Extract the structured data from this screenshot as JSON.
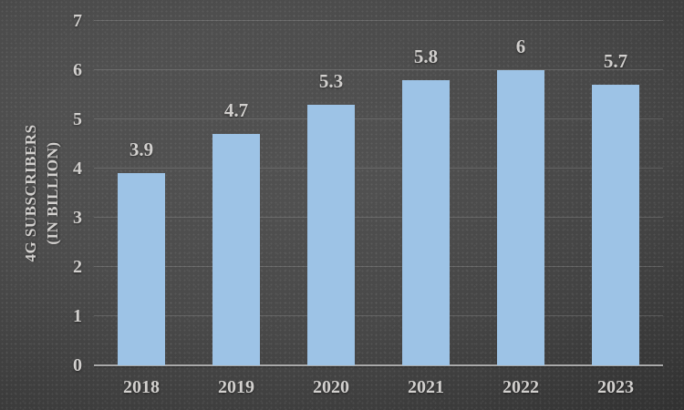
{
  "chart_data": {
    "type": "bar",
    "title": "",
    "ylabel_line1": "4G SUBSCRIBERS",
    "ylabel_line2": "(IN BILLION)",
    "xlabel": "",
    "categories": [
      "2018",
      "2019",
      "2020",
      "2021",
      "2022",
      "2023"
    ],
    "values": [
      3.9,
      4.7,
      5.3,
      5.8,
      6,
      5.7
    ],
    "value_labels": [
      "3.9",
      "4.7",
      "5.3",
      "5.8",
      "6",
      "5.7"
    ],
    "ylim": [
      0,
      7
    ],
    "ytick_labels": [
      "0",
      "1",
      "2",
      "3",
      "4",
      "5",
      "6",
      "7"
    ],
    "grid": "horizontal",
    "legend_position": "none",
    "colors": {
      "bar": "#9DC3E6",
      "text": "#D2D0CE",
      "axis_line": "#A9A9A9",
      "gridline": "rgba(255,255,255,0.15)",
      "background_center": "#4F4F4F",
      "background_edge": "#272727"
    }
  }
}
